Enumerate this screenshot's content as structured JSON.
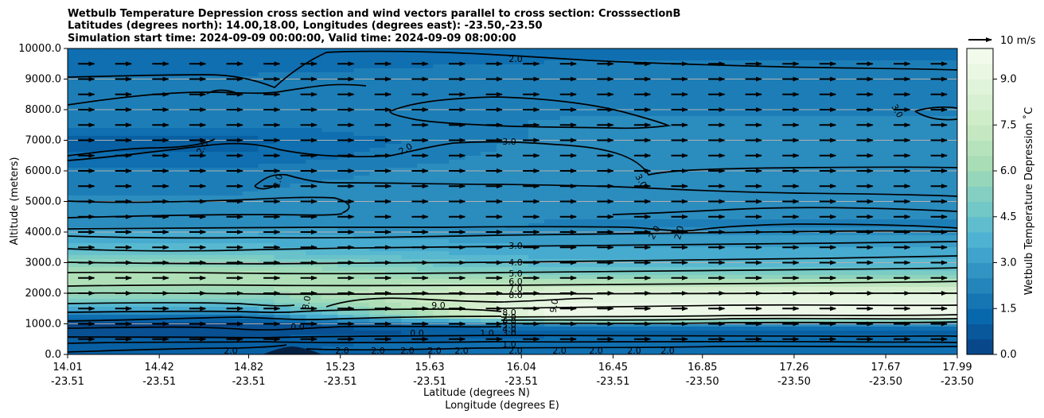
{
  "chart_data": {
    "type": "heatmap",
    "title_lines": [
      "Wetbulb Temperature Depression cross section and wind vectors parallel to cross section: CrosssectionB",
      "Latitudes (degrees north): 14.00,18.00, Longitudes (degrees east): -23.50,-23.50",
      "Simulation start time: 2024-09-09 00:00:00, Valid time: 2024-09-09 08:00:00"
    ],
    "xlabel_lat": "Latitude (degrees N)",
    "xlabel_lon": "Longitude (degrees E)",
    "ylabel": "Altitude (meters)",
    "x_tick_lat": [
      "14.01",
      "14.42",
      "14.82",
      "15.23",
      "15.63",
      "16.04",
      "16.45",
      "16.85",
      "17.26",
      "17.67",
      "17.99"
    ],
    "x_tick_lon": [
      "-23.51",
      "-23.51",
      "-23.51",
      "-23.51",
      "-23.51",
      "-23.51",
      "-23.51",
      "-23.50",
      "-23.50",
      "-23.50",
      "-23.50"
    ],
    "y_ticks": [
      0,
      1000,
      2000,
      3000,
      4000,
      5000,
      6000,
      7000,
      8000,
      9000,
      10000
    ],
    "y_tick_labels": [
      "0.0",
      "1000.0",
      "2000.0",
      "3000.0",
      "4000.0",
      "5000.0",
      "6000.0",
      "7000.0",
      "8000.0",
      "9000.0",
      "10000.0"
    ],
    "ylim": [
      0,
      10000
    ],
    "grid": "horizontal",
    "colorbar": {
      "label": "Wetbulb Temperature Depression ˚C",
      "range": [
        0,
        10
      ],
      "ticks": [
        0,
        1.5,
        3,
        4.5,
        6,
        7.5,
        9
      ],
      "tick_labels": [
        "0.0",
        "1.5",
        "3.0",
        "4.5",
        "6.0",
        "7.5",
        "9.0"
      ],
      "colormap": "GnBu",
      "colors": [
        "#084081",
        "#0868ac",
        "#2b8cbe",
        "#4eb3d3",
        "#7bccc4",
        "#a8ddb5",
        "#ccebc5",
        "#e0f3db",
        "#f7fcf0"
      ]
    },
    "wind_reference_label": "10 m/s",
    "profile": {
      "altitude": [
        0,
        250,
        500,
        750,
        1000,
        1250,
        1500,
        1750,
        2000,
        2250,
        2500,
        2750,
        3000,
        3250,
        3500,
        3750,
        4000,
        4250,
        4500,
        5000,
        5500,
        6000,
        6500,
        7000,
        7500,
        8000,
        8500,
        9000,
        9500,
        10000
      ],
      "depression_left": [
        1.0,
        1.2,
        0.8,
        0.4,
        0.2,
        1.8,
        3.6,
        4.8,
        5.8,
        6.3,
        6.6,
        6.3,
        5.5,
        4.6,
        3.9,
        3.6,
        3.2,
        2.5,
        2.3,
        2.3,
        2.2,
        1.9,
        1.3,
        1.1,
        1.8,
        2.0,
        2.0,
        1.8,
        1.6,
        1.2
      ],
      "depression_right": [
        1.3,
        1.6,
        1.4,
        1.0,
        2.5,
        9.5,
        9.4,
        9.2,
        8.6,
        7.3,
        5.8,
        4.6,
        3.9,
        3.5,
        3.2,
        3.0,
        2.4,
        2.2,
        2.3,
        2.6,
        2.7,
        2.7,
        2.6,
        2.4,
        2.3,
        2.2,
        2.2,
        2.0,
        1.8,
        1.3
      ]
    },
    "contour_labels": [
      "2.0",
      "3.0",
      "2.0",
      "3.0",
      "3.0",
      "2.0",
      "2.0",
      "2.0",
      "2.0",
      "3.0",
      "4.0",
      "5.0",
      "6.0",
      "7.0",
      "8.0",
      "9.0",
      "8.0",
      "9.0",
      "0.0",
      "8.0",
      "7.0",
      "6.0",
      "5.0",
      "4.0",
      "3.0",
      "1.0",
      "1.0",
      "2.0",
      "2.0",
      "2.0",
      "2.0",
      "2.0",
      "2.0",
      "2.0",
      "2.0",
      "2.0",
      "2.0",
      "2.0",
      "0.0"
    ],
    "wind": {
      "rows_altitude": [
        500,
        1000,
        1500,
        2000,
        2500,
        3000,
        3500,
        4000,
        4500,
        5000,
        5500,
        6000,
        6500,
        7000,
        7500,
        8000,
        8500,
        9000,
        9500
      ],
      "columns": 24,
      "u_ms": [
        7,
        7,
        7,
        7,
        7,
        7,
        7,
        7,
        7,
        7,
        7,
        7,
        7,
        7,
        7,
        7,
        7,
        7,
        7
      ]
    }
  }
}
